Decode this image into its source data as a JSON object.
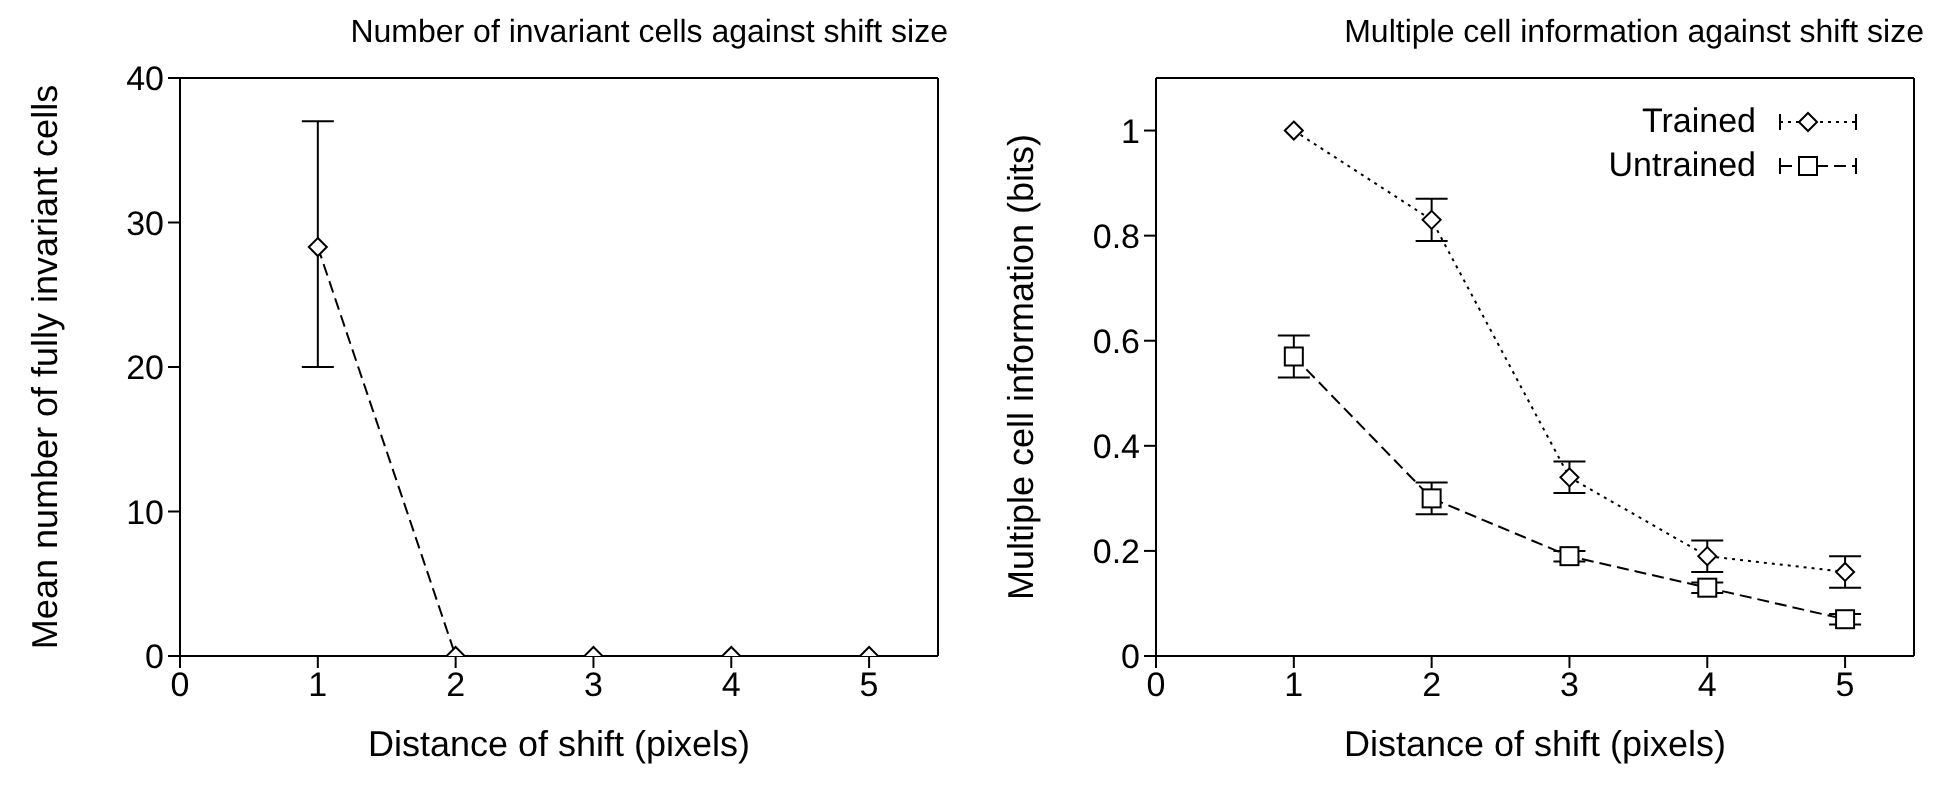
{
  "chart_data": [
    {
      "type": "line",
      "title": "Number of invariant cells against shift size",
      "xlabel": "Distance of shift (pixels)",
      "ylabel": "Mean number of fully invariant cells",
      "x": [
        1,
        2,
        3,
        4,
        5
      ],
      "values": [
        28.3,
        0,
        0,
        0,
        0
      ],
      "errors": [
        [
          20,
          37
        ],
        null,
        null,
        null,
        null
      ],
      "color": "#000000",
      "marker": "diamond",
      "line_style": "dashed",
      "xlim": [
        0,
        5.5
      ],
      "xticks": [
        0,
        1,
        2,
        3,
        4,
        5
      ],
      "ylim": [
        0,
        40
      ],
      "yticks": [
        0,
        10,
        20,
        30,
        40
      ],
      "grid": false,
      "legend": false
    },
    {
      "type": "line",
      "title": "Multiple cell information against shift size",
      "xlabel": "Distance of shift (pixels)",
      "ylabel": "Multiple cell information (bits)",
      "x": [
        1,
        2,
        3,
        4,
        5
      ],
      "series": [
        {
          "name": "Trained",
          "color": "#000000",
          "marker": "diamond",
          "line_style": "dotted",
          "values": [
            1.0,
            0.83,
            0.34,
            0.19,
            0.16
          ],
          "errors": [
            null,
            [
              0.79,
              0.87
            ],
            [
              0.31,
              0.37
            ],
            [
              0.16,
              0.22
            ],
            [
              0.13,
              0.19
            ]
          ]
        },
        {
          "name": "Untrained",
          "color": "#000000",
          "marker": "square",
          "line_style": "dashed",
          "values": [
            0.57,
            0.3,
            0.19,
            0.13,
            0.07
          ],
          "errors": [
            [
              0.53,
              0.61
            ],
            [
              0.27,
              0.33
            ],
            [
              0.18,
              0.2
            ],
            [
              0.12,
              0.14
            ],
            [
              0.06,
              0.08
            ]
          ]
        }
      ],
      "xlim": [
        0,
        5.5
      ],
      "xticks": [
        0,
        1,
        2,
        3,
        4,
        5
      ],
      "ylim": [
        0,
        1.1
      ],
      "yticks": [
        0,
        0.2,
        0.4,
        0.6,
        0.8,
        1
      ],
      "grid": false,
      "legend": "top right"
    }
  ]
}
